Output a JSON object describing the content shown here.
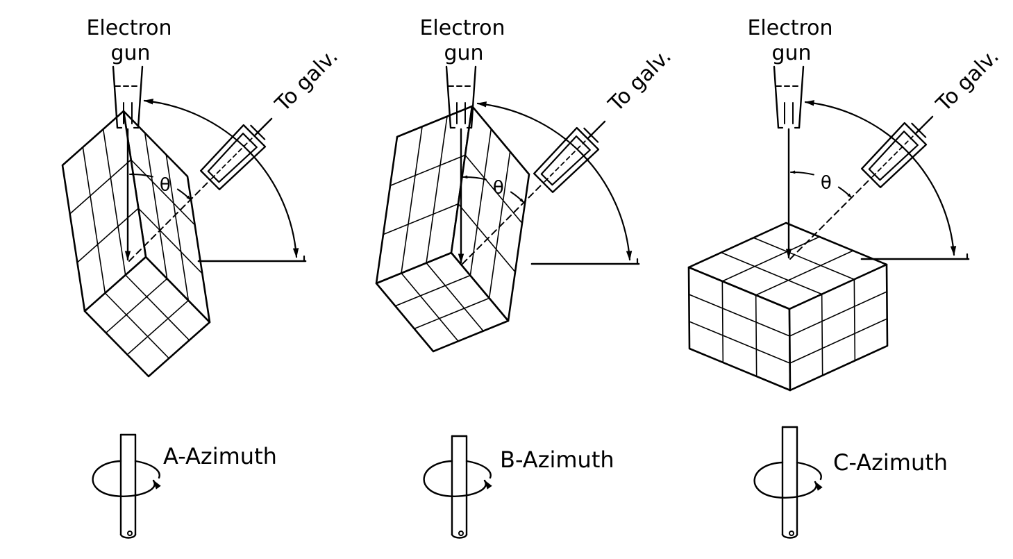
{
  "panels": [
    {
      "id": "A",
      "gun_label_line1": "Electron",
      "gun_label_line2": "gun",
      "detector_label": "To galv.",
      "angle_symbol": "θ",
      "caption": "A-Azimuth"
    },
    {
      "id": "B",
      "gun_label_line1": "Electron",
      "gun_label_line2": "gun",
      "detector_label": "To galv.",
      "angle_symbol": "θ",
      "caption": "B-Azimuth"
    },
    {
      "id": "C",
      "gun_label_line1": "Electron",
      "gun_label_line2": "gun",
      "detector_label": "To galv.",
      "angle_symbol": "θ",
      "caption": "C-Azimuth"
    }
  ]
}
